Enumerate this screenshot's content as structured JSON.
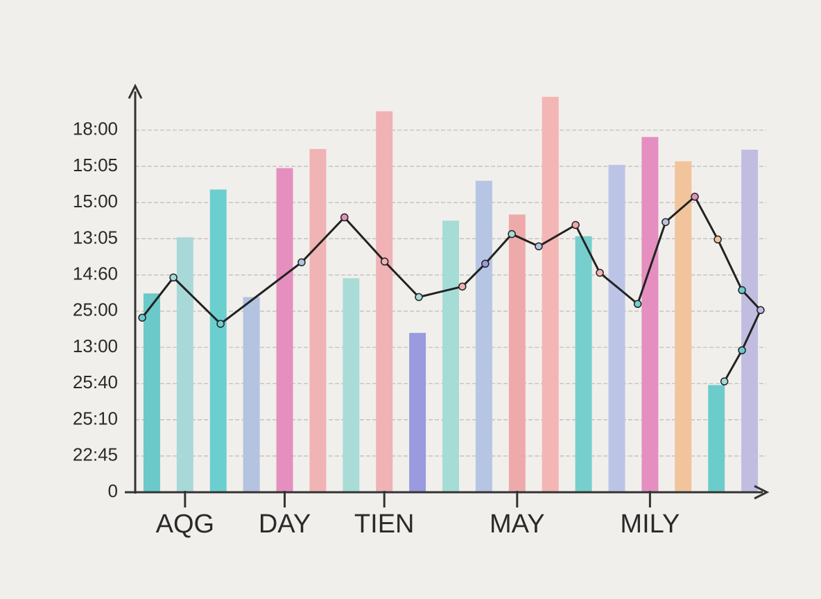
{
  "chart_data": {
    "type": "bar",
    "categories": [
      null,
      "AQG",
      null,
      null,
      "DAY",
      null,
      null,
      "TIEN",
      null,
      null,
      null,
      "MAY",
      null,
      null,
      null,
      "MILY",
      null,
      null,
      null
    ],
    "values": [
      5.49,
      7.04,
      8.36,
      5.39,
      8.95,
      9.48,
      5.91,
      10.52,
      4.4,
      7.5,
      8.6,
      7.67,
      10.92,
      7.07,
      9.04,
      9.81,
      9.14,
      2.96,
      9.46
    ],
    "colors": [
      "#6cc9c9",
      "#a8d8d8",
      "#6ccfcf",
      "#b3c3e0",
      "#e58fbf",
      "#f0b4b4",
      "#a9dcd6",
      "#f0b2b5",
      "#9a9ade",
      "#a6dcd6",
      "#b5c5e3",
      "#eeaaaa",
      "#f3b6b4",
      "#76cfcc",
      "#bcc4e6",
      "#e48fc0",
      "#f2c49b",
      "#6ccccb",
      "#c1bde0"
    ],
    "ylim": [
      0,
      11.2
    ],
    "yticks": [
      {
        "value": 0,
        "label": "0"
      },
      {
        "value": 1,
        "label": "22:45"
      },
      {
        "value": 2,
        "label": "25:10"
      },
      {
        "value": 3,
        "label": "25:40"
      },
      {
        "value": 4,
        "label": "13:00"
      },
      {
        "value": 5,
        "label": "25:00"
      },
      {
        "value": 6,
        "label": "14:60"
      },
      {
        "value": 7,
        "label": "13:05"
      },
      {
        "value": 8,
        "label": "15:00"
      },
      {
        "value": 9,
        "label": "15:05"
      },
      {
        "value": 10,
        "label": "18:00"
      }
    ],
    "grid": true,
    "line": {
      "type": "line",
      "color": "#222222",
      "x": [
        -0.29,
        0.65,
        2.07,
        4.51,
        5.8,
        7.01,
        8.04,
        9.35,
        10.04,
        10.84,
        11.65,
        12.76,
        13.49,
        14.63,
        15.47,
        16.35,
        17.04,
        17.77,
        18.33,
        17.77,
        17.24
      ],
      "values": [
        4.82,
        5.93,
        4.65,
        6.35,
        7.59,
        6.37,
        5.39,
        5.68,
        6.31,
        7.13,
        6.79,
        7.38,
        6.06,
        5.2,
        7.46,
        8.16,
        6.98,
        5.58,
        5.03,
        3.92,
        3.06
      ]
    }
  }
}
